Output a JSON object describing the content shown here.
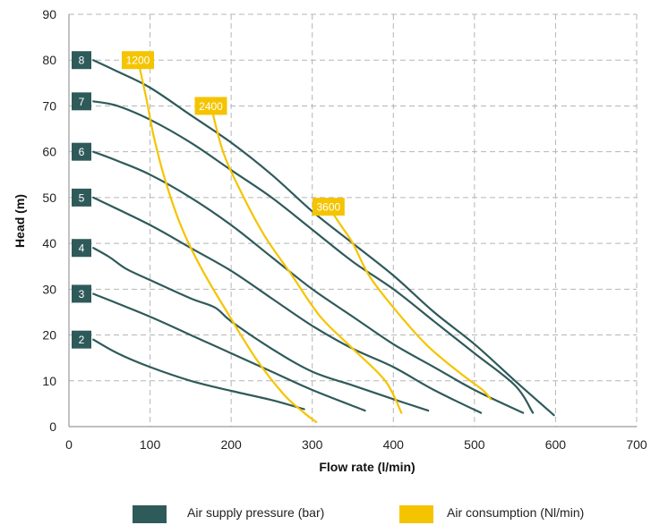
{
  "chart_data": {
    "type": "line",
    "xlabel": "Flow rate (l/min)",
    "ylabel": "Head (m)",
    "xlim": [
      0,
      700
    ],
    "ylim": [
      0,
      90
    ],
    "x_ticks": [
      0,
      100,
      200,
      300,
      400,
      500,
      600,
      700
    ],
    "y_ticks": [
      0,
      10,
      20,
      30,
      40,
      50,
      60,
      70,
      80,
      90
    ],
    "grid": true,
    "legend_position": "bottom",
    "colors": {
      "pressure": "#2f5a5a",
      "consumption": "#f5c400"
    },
    "legend": [
      {
        "label": "Air supply pressure (bar)",
        "color": "#2f5a5a"
      },
      {
        "label": "Air consumption (Nl/min)",
        "color": "#f5c400"
      }
    ],
    "pressure_series": [
      {
        "label": "2",
        "points": [
          [
            30,
            19
          ],
          [
            60,
            16
          ],
          [
            100,
            13
          ],
          [
            150,
            10
          ],
          [
            200,
            7.8
          ],
          [
            250,
            5.8
          ],
          [
            290,
            3.8
          ]
        ]
      },
      {
        "label": "3",
        "points": [
          [
            30,
            29
          ],
          [
            100,
            24
          ],
          [
            150,
            20
          ],
          [
            200,
            16
          ],
          [
            250,
            12
          ],
          [
            300,
            8
          ],
          [
            365,
            3.5
          ]
        ]
      },
      {
        "label": "4",
        "points": [
          [
            30,
            39
          ],
          [
            50,
            37
          ],
          [
            70,
            34.5
          ],
          [
            100,
            32
          ],
          [
            150,
            28
          ],
          [
            180,
            26
          ],
          [
            200,
            23
          ],
          [
            250,
            17
          ],
          [
            300,
            12
          ],
          [
            350,
            9
          ],
          [
            400,
            6
          ],
          [
            443,
            3.5
          ]
        ]
      },
      {
        "label": "5",
        "points": [
          [
            30,
            50
          ],
          [
            100,
            44
          ],
          [
            150,
            39
          ],
          [
            200,
            34
          ],
          [
            250,
            28
          ],
          [
            300,
            22
          ],
          [
            350,
            17
          ],
          [
            400,
            13
          ],
          [
            450,
            8
          ],
          [
            508,
            3
          ]
        ]
      },
      {
        "label": "6",
        "points": [
          [
            30,
            60
          ],
          [
            60,
            58
          ],
          [
            100,
            55
          ],
          [
            150,
            50
          ],
          [
            200,
            44
          ],
          [
            250,
            37
          ],
          [
            300,
            30
          ],
          [
            350,
            24
          ],
          [
            400,
            18
          ],
          [
            450,
            13
          ],
          [
            500,
            8
          ],
          [
            560,
            3
          ]
        ]
      },
      {
        "label": "7",
        "points": [
          [
            30,
            71
          ],
          [
            60,
            70
          ],
          [
            100,
            67
          ],
          [
            150,
            62
          ],
          [
            200,
            56
          ],
          [
            250,
            50
          ],
          [
            300,
            43
          ],
          [
            350,
            36
          ],
          [
            400,
            30
          ],
          [
            450,
            23
          ],
          [
            500,
            16
          ],
          [
            550,
            9
          ],
          [
            572,
            3
          ]
        ]
      },
      {
        "label": "8",
        "points": [
          [
            30,
            80
          ],
          [
            60,
            77.5
          ],
          [
            100,
            74
          ],
          [
            150,
            68
          ],
          [
            200,
            62
          ],
          [
            250,
            55
          ],
          [
            300,
            47
          ],
          [
            350,
            40
          ],
          [
            400,
            33
          ],
          [
            450,
            25
          ],
          [
            500,
            18
          ],
          [
            550,
            10
          ],
          [
            598,
            2.5
          ]
        ]
      }
    ],
    "consumption_series": [
      {
        "label": "1200",
        "points": [
          [
            85,
            80
          ],
          [
            95,
            72
          ],
          [
            105,
            63
          ],
          [
            120,
            53
          ],
          [
            140,
            43
          ],
          [
            165,
            34
          ],
          [
            195,
            25
          ],
          [
            230,
            15
          ],
          [
            265,
            7
          ],
          [
            290,
            3
          ],
          [
            305,
            1
          ]
        ]
      },
      {
        "label": "2400",
        "points": [
          [
            175,
            70
          ],
          [
            190,
            60
          ],
          [
            210,
            52
          ],
          [
            240,
            42
          ],
          [
            275,
            33
          ],
          [
            310,
            24
          ],
          [
            350,
            17
          ],
          [
            390,
            10
          ],
          [
            410,
            3
          ]
        ]
      },
      {
        "label": "3600",
        "points": [
          [
            320,
            48
          ],
          [
            335,
            44
          ],
          [
            350,
            40
          ],
          [
            370,
            33
          ],
          [
            400,
            26
          ],
          [
            440,
            18
          ],
          [
            480,
            12
          ],
          [
            510,
            8
          ],
          [
            520,
            6
          ]
        ]
      }
    ]
  }
}
